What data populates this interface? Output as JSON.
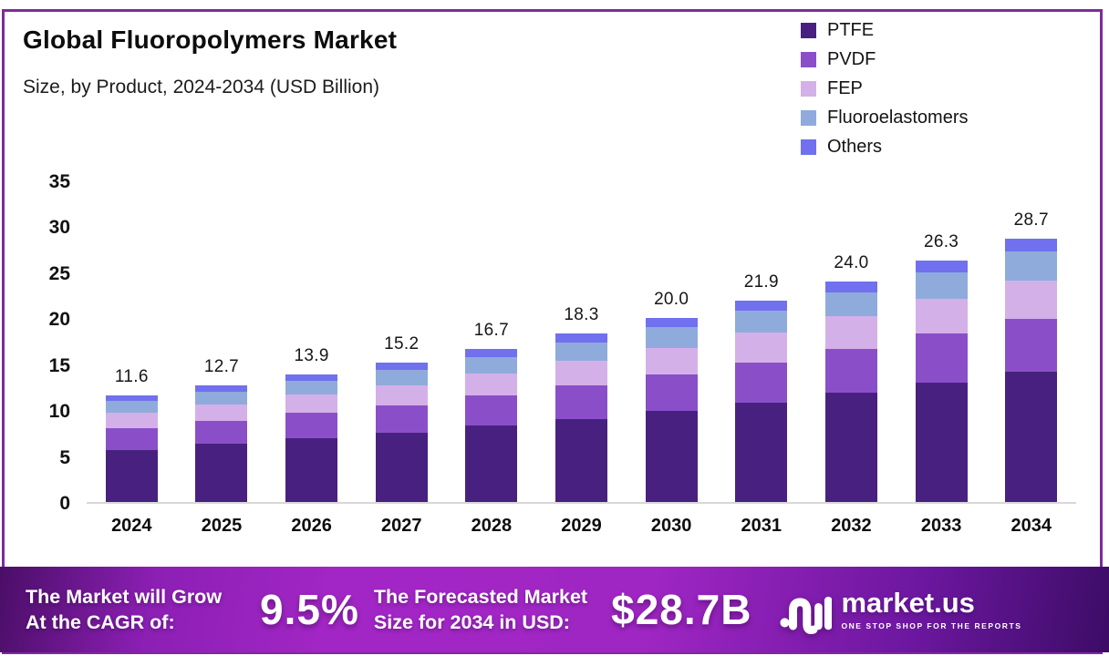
{
  "header": {
    "title": "Global Fluoropolymers Market",
    "subtitle": "Size, by Product, 2024-2034 (USD Billion)"
  },
  "legend": {
    "position": "top-right",
    "items": [
      {
        "label": "PTFE",
        "color": "#482180"
      },
      {
        "label": "PVDF",
        "color": "#8a4fc8"
      },
      {
        "label": "FEP",
        "color": "#d4b0e9"
      },
      {
        "label": "Fluoroelastomers",
        "color": "#8fabdb"
      },
      {
        "label": "Others",
        "color": "#7170ee"
      }
    ]
  },
  "chart_data": {
    "type": "bar",
    "stacked": true,
    "title": "Global Fluoropolymers Market",
    "subtitle": "Size, by Product, 2024-2034 (USD Billion)",
    "xlabel": "",
    "ylabel": "USD Billion",
    "ylim": [
      0,
      35
    ],
    "yticks": [
      0,
      5,
      10,
      15,
      20,
      25,
      30,
      35
    ],
    "grid": false,
    "legend_position": "top-right",
    "categories": [
      "2024",
      "2025",
      "2026",
      "2027",
      "2028",
      "2029",
      "2030",
      "2031",
      "2032",
      "2033",
      "2034"
    ],
    "series": [
      {
        "name": "PTFE",
        "color": "#482180",
        "values": [
          5.7,
          6.3,
          6.9,
          7.5,
          8.3,
          9.0,
          9.9,
          10.8,
          11.9,
          13.0,
          14.2
        ]
      },
      {
        "name": "PVDF",
        "color": "#8a4fc8",
        "values": [
          2.3,
          2.5,
          2.8,
          3.0,
          3.3,
          3.7,
          4.0,
          4.4,
          4.8,
          5.3,
          5.7
        ]
      },
      {
        "name": "FEP",
        "color": "#d4b0e9",
        "values": [
          1.7,
          1.8,
          2.0,
          2.2,
          2.4,
          2.7,
          2.9,
          3.2,
          3.5,
          3.8,
          4.2
        ]
      },
      {
        "name": "Fluoroelastomers",
        "color": "#8fabdb",
        "values": [
          1.3,
          1.4,
          1.5,
          1.7,
          1.8,
          2.0,
          2.2,
          2.4,
          2.6,
          2.9,
          3.2
        ]
      },
      {
        "name": "Others",
        "color": "#7170ee",
        "values": [
          0.6,
          0.7,
          0.7,
          0.8,
          0.9,
          0.9,
          1.0,
          1.1,
          1.2,
          1.3,
          1.4
        ]
      }
    ],
    "totals": [
      11.6,
      12.7,
      13.9,
      15.2,
      16.7,
      18.3,
      20.0,
      21.9,
      24.0,
      26.3,
      28.7
    ],
    "total_labels": [
      "11.6",
      "12.7",
      "13.9",
      "15.2",
      "16.7",
      "18.3",
      "20.0",
      "21.9",
      "24.0",
      "26.3",
      "28.7"
    ]
  },
  "banner": {
    "cagr_label_line1": "The Market will Grow",
    "cagr_label_line2": "At the CAGR of:",
    "cagr_value": "9.5%",
    "forecast_label_line1": "The Forecasted Market",
    "forecast_label_line2": "Size for 2034 in USD:",
    "forecast_value": "$28.7B",
    "logo_text": "market.us",
    "logo_tagline": "ONE STOP SHOP FOR THE REPORTS"
  },
  "colors": {
    "frame_border": "#7c2b9e",
    "axis_line": "#d8d8d8",
    "banner_gradient_left": "#4a0e67",
    "banner_gradient_mid": "#a226c5",
    "banner_gradient_right": "#3c0c66"
  }
}
